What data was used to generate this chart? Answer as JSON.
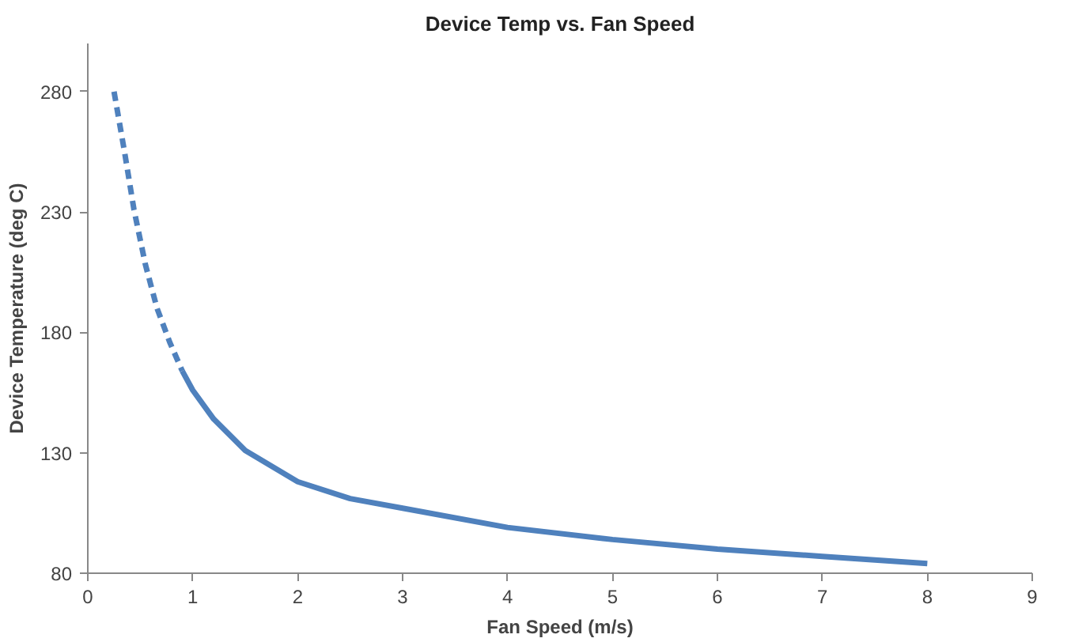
{
  "chart_data": {
    "type": "line",
    "title": "Device Temp vs. Fan Speed",
    "xlabel": "Fan Speed (m/s)",
    "ylabel": "Device Temperature (deg C)",
    "xlim": [
      0,
      9
    ],
    "xticks": [
      0,
      1,
      2,
      3,
      4,
      5,
      6,
      7,
      8,
      9
    ],
    "ylim": [
      80,
      300
    ],
    "yticks": [
      80,
      130,
      180,
      230,
      280
    ],
    "grid": false,
    "marker": "none",
    "series": [
      {
        "color": "#4f81bd",
        "line_style": "dashed",
        "x": [
          0.25,
          0.35,
          0.44,
          0.55,
          0.66,
          0.78,
          0.9
        ],
        "values": [
          280,
          255,
          231,
          208,
          190,
          176,
          164
        ]
      },
      {
        "color": "#4f81bd",
        "line_style": "solid",
        "x": [
          0.9,
          1.0,
          1.2,
          1.5,
          2.0,
          2.5,
          3.0,
          4.0,
          5.0,
          6.0,
          7.0,
          8.0
        ],
        "values": [
          164,
          156,
          144,
          131,
          118,
          111,
          107,
          99,
          94,
          90,
          87,
          84
        ]
      }
    ]
  }
}
